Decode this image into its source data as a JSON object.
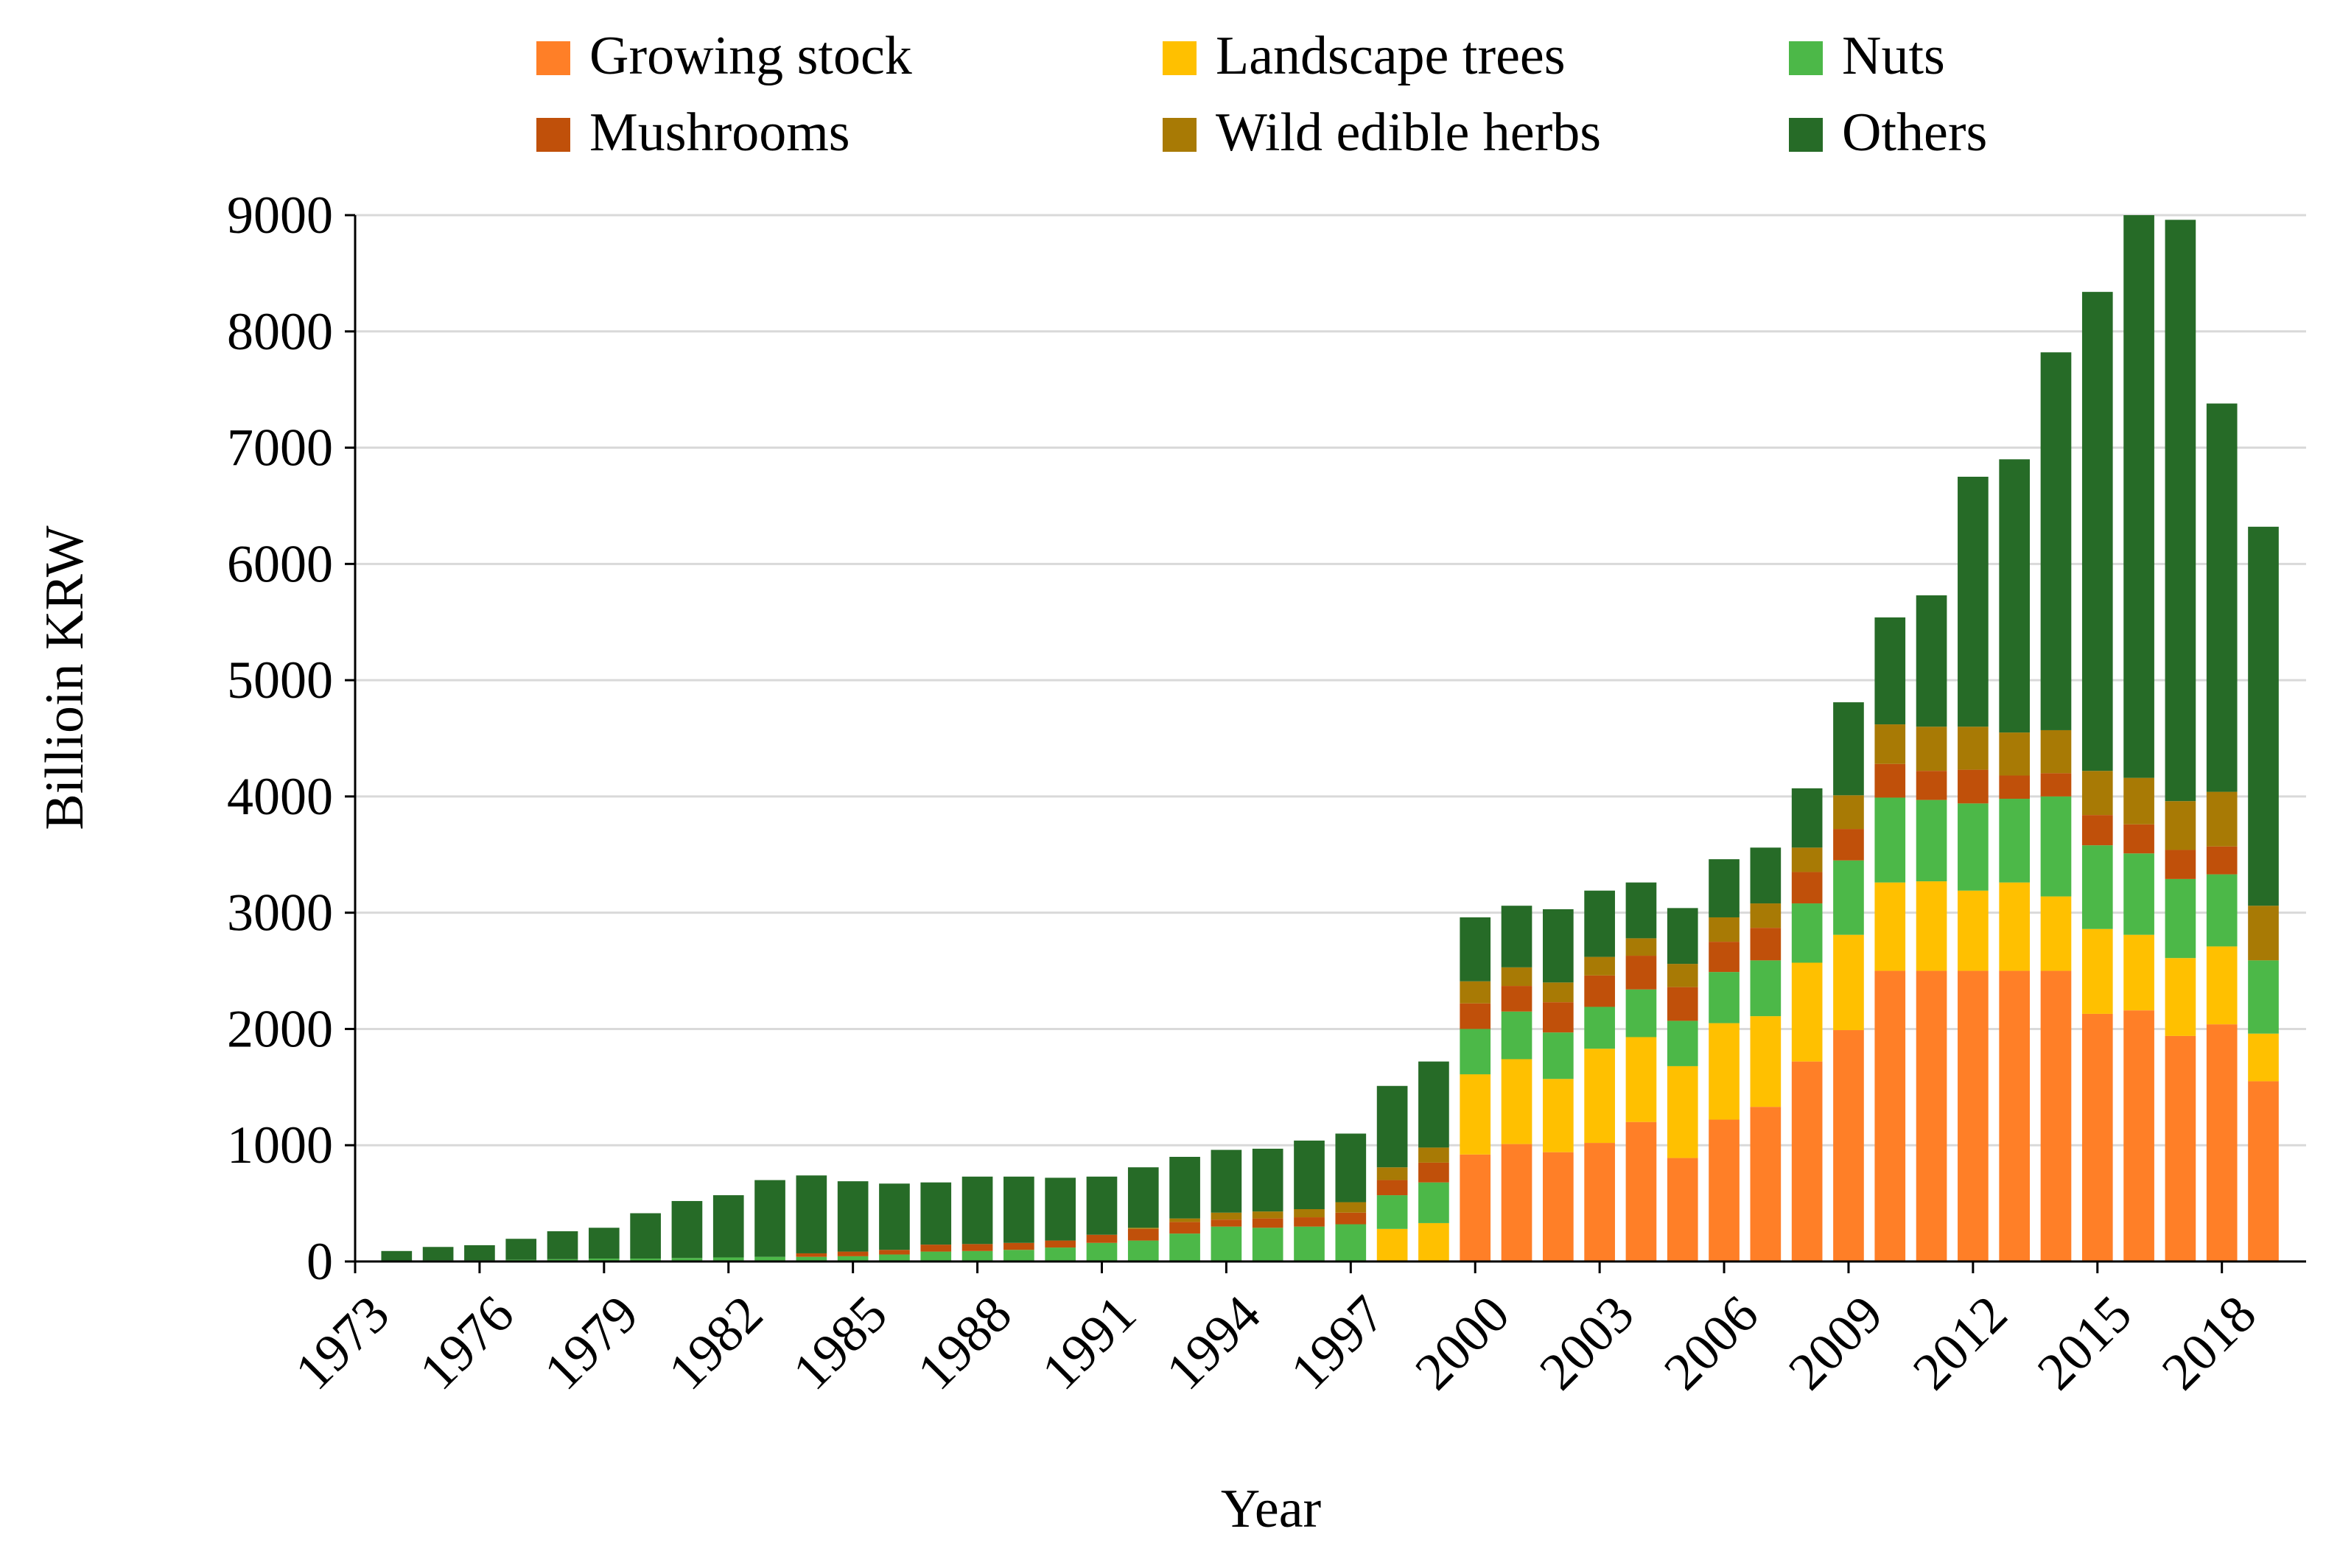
{
  "chart_data": {
    "type": "bar",
    "stacked": true,
    "title": "",
    "xlabel": "Year",
    "ylabel": "Billioin KRW",
    "ylim": [
      0,
      9000
    ],
    "yticks": [
      0,
      1000,
      2000,
      3000,
      4000,
      5000,
      6000,
      7000,
      8000,
      9000
    ],
    "y_gridlines": true,
    "legend_position": "top",
    "x_tick_labels": [
      "1973",
      "1976",
      "1979",
      "1982",
      "1985",
      "1988",
      "1991",
      "1994",
      "1997",
      "2000",
      "2003",
      "2006",
      "2009",
      "2012",
      "2015",
      "2018"
    ],
    "categories": [
      "1974",
      "1975",
      "1976",
      "1977",
      "1978",
      "1979",
      "1980",
      "1981",
      "1982",
      "1983",
      "1984",
      "1985",
      "1986",
      "1987",
      "1988",
      "1989",
      "1990",
      "1991",
      "1992",
      "1993",
      "1994",
      "1995",
      "1996",
      "1997",
      "1998",
      "1999",
      "2000",
      "2001",
      "2002",
      "2003",
      "2004",
      "2005",
      "2006",
      "2007",
      "2008",
      "2009",
      "2010",
      "2011",
      "2012",
      "2013",
      "2014",
      "2015",
      "2016",
      "2017",
      "2018",
      "2019"
    ],
    "series": [
      {
        "name": "Growing stock",
        "color": "#FF7F27",
        "values": [
          0,
          0,
          0,
          0,
          0,
          0,
          0,
          0,
          0,
          0,
          0,
          0,
          0,
          0,
          0,
          0,
          0,
          0,
          0,
          0,
          0,
          0,
          0,
          0,
          0,
          0,
          920,
          1010,
          940,
          1020,
          1200,
          890,
          1220,
          1330,
          1720,
          1990,
          2500,
          2500,
          2500,
          2500,
          2500,
          2130,
          2160,
          1940,
          2040,
          1550
        ]
      },
      {
        "name": "Landscape trees",
        "color": "#FFC000",
        "values": [
          0,
          0,
          0,
          0,
          0,
          0,
          0,
          0,
          0,
          0,
          0,
          0,
          0,
          0,
          0,
          0,
          0,
          0,
          0,
          0,
          0,
          0,
          0,
          0,
          280,
          330,
          690,
          730,
          630,
          810,
          730,
          790,
          830,
          780,
          850,
          820,
          760,
          770,
          690,
          760,
          640,
          730,
          650,
          670,
          670,
          410
        ]
      },
      {
        "name": "Nuts",
        "color": "#4CB848",
        "values": [
          5,
          10,
          10,
          15,
          20,
          25,
          25,
          30,
          35,
          40,
          40,
          45,
          60,
          85,
          90,
          100,
          120,
          160,
          180,
          240,
          300,
          290,
          300,
          320,
          290,
          350,
          390,
          410,
          400,
          360,
          410,
          390,
          440,
          480,
          510,
          640,
          730,
          700,
          750,
          720,
          860,
          720,
          700,
          680,
          620,
          630
        ]
      },
      {
        "name": "Mushrooms",
        "color": "#C0500A",
        "values": [
          0,
          0,
          0,
          0,
          0,
          0,
          0,
          0,
          0,
          0,
          30,
          40,
          40,
          60,
          60,
          60,
          60,
          70,
          100,
          100,
          60,
          80,
          80,
          100,
          130,
          170,
          220,
          220,
          260,
          270,
          290,
          290,
          260,
          280,
          270,
          270,
          290,
          250,
          290,
          200,
          200,
          260,
          250,
          250,
          240,
          0
        ]
      },
      {
        "name": "Wild edible herbs",
        "color": "#A87A05",
        "values": [
          0,
          0,
          0,
          0,
          0,
          0,
          0,
          0,
          0,
          0,
          0,
          0,
          0,
          0,
          0,
          0,
          0,
          0,
          10,
          30,
          60,
          60,
          70,
          90,
          110,
          130,
          190,
          160,
          170,
          160,
          150,
          200,
          210,
          210,
          210,
          290,
          340,
          380,
          370,
          370,
          370,
          380,
          400,
          420,
          470,
          470
        ]
      },
      {
        "name": "Others",
        "color": "#266B27",
        "values": [
          85,
          115,
          130,
          180,
          240,
          265,
          390,
          490,
          535,
          660,
          670,
          605,
          570,
          535,
          580,
          570,
          540,
          500,
          520,
          530,
          540,
          540,
          590,
          590,
          700,
          740,
          550,
          530,
          630,
          570,
          480,
          480,
          500,
          480,
          510,
          800,
          920,
          1130,
          2150,
          2350,
          3250,
          4120,
          4840,
          5000,
          3340,
          3260
        ]
      }
    ]
  }
}
